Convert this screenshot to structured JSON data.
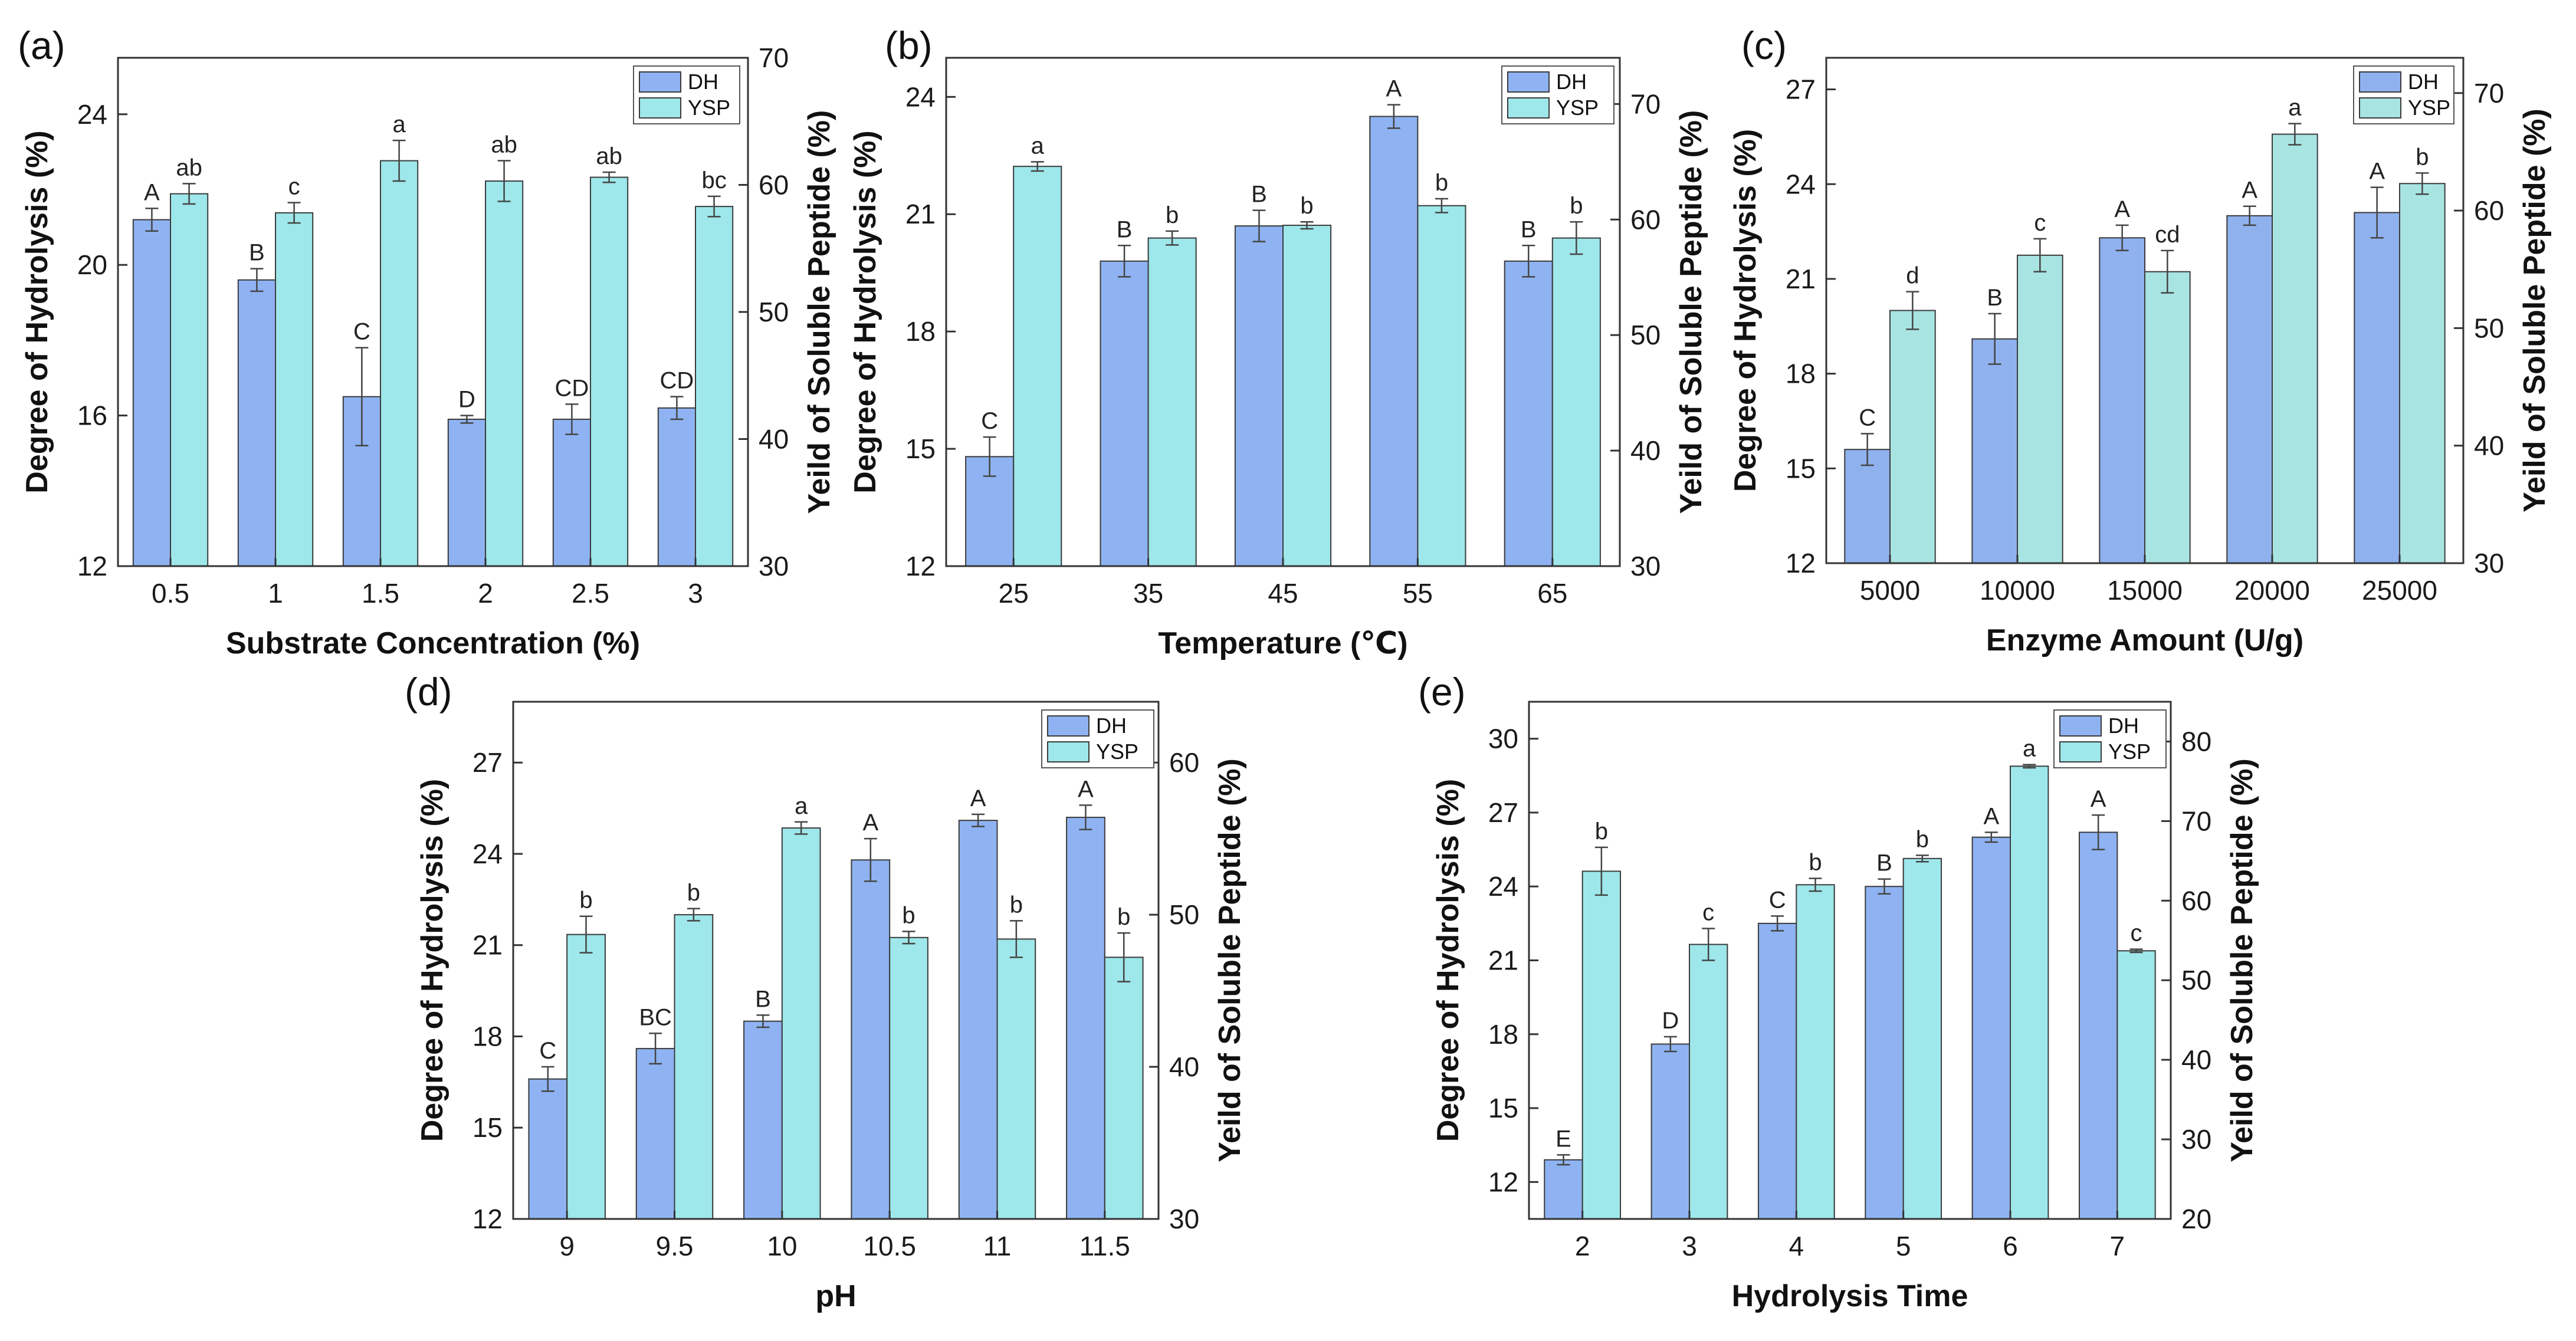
{
  "colors": {
    "dh": "#8fb3f2",
    "ysp": "#9ee7ea",
    "dh_c": "#8fb1ee",
    "ysp_c": "#a8e4e2",
    "axis": "#333333"
  },
  "chart_data": [
    {
      "panel": "(a)",
      "type": "bar",
      "categories": [
        "0.5",
        "1",
        "1.5",
        "2",
        "2.5",
        "3"
      ],
      "series": [
        {
          "name": "DH",
          "axis": "left",
          "values": [
            21.2,
            19.6,
            16.5,
            15.9,
            15.9,
            16.2
          ],
          "errors": [
            0.3,
            0.3,
            1.3,
            0.1,
            0.4,
            0.3
          ],
          "letters": [
            "A",
            "B",
            "C",
            "D",
            "CD",
            "CD"
          ]
        },
        {
          "name": "YSP",
          "axis": "right",
          "values": [
            59.3,
            57.8,
            61.9,
            60.3,
            60.6,
            58.3
          ],
          "errors": [
            0.8,
            0.8,
            1.6,
            1.6,
            0.4,
            0.8
          ],
          "letters": [
            "ab",
            "c",
            "a",
            "ab",
            "ab",
            "bc"
          ]
        }
      ],
      "xlabel": "Substrate Concentration (%)",
      "ylabel": "Degree of Hydrolysis (%)",
      "y2label": "Yeild of Soluble Peptide (%)",
      "ylim": [
        12,
        25.5
      ],
      "yticks": [
        "12",
        "16",
        "20",
        "24"
      ],
      "y2lim": [
        30,
        70
      ],
      "y2ticks": [
        "30",
        "40",
        "50",
        "60",
        "70"
      ],
      "legend": [
        "DH",
        "YSP"
      ]
    },
    {
      "panel": "(b)",
      "type": "bar",
      "categories": [
        "25",
        "35",
        "45",
        "55",
        "65"
      ],
      "series": [
        {
          "name": "DH",
          "axis": "left",
          "values": [
            14.8,
            19.8,
            20.7,
            23.5,
            19.8
          ],
          "errors": [
            0.5,
            0.4,
            0.4,
            0.3,
            0.4
          ],
          "letters": [
            "C",
            "B",
            "B",
            "A",
            "B"
          ]
        },
        {
          "name": "YSP",
          "axis": "right",
          "values": [
            64.6,
            58.4,
            59.5,
            61.2,
            58.4
          ],
          "errors": [
            0.4,
            0.6,
            0.3,
            0.6,
            1.4
          ],
          "letters": [
            "a",
            "b",
            "b",
            "b",
            "b"
          ]
        }
      ],
      "xlabel": "Temperature (℃)",
      "ylabel": "Degree of Hydrolysis (%)",
      "y2label": "Yeild of Soluble Peptide (%)",
      "ylim": [
        12,
        25
      ],
      "yticks": [
        "12",
        "15",
        "18",
        "21",
        "24"
      ],
      "y2lim": [
        30,
        74
      ],
      "y2ticks": [
        "30",
        "40",
        "50",
        "60",
        "70"
      ],
      "legend": [
        "DH",
        "YSP"
      ]
    },
    {
      "panel": "(c)",
      "type": "bar",
      "categories": [
        "5000",
        "10000",
        "15000",
        "20000",
        "25000"
      ],
      "series": [
        {
          "name": "DH",
          "axis": "left",
          "values": [
            15.6,
            19.1,
            22.3,
            23.0,
            23.1
          ],
          "errors": [
            0.5,
            0.8,
            0.4,
            0.3,
            0.8
          ],
          "letters": [
            "C",
            "B",
            "A",
            "A",
            "A"
          ]
        },
        {
          "name": "YSP",
          "axis": "right",
          "values": [
            51.5,
            56.2,
            54.8,
            66.5,
            62.3
          ],
          "errors": [
            1.6,
            1.4,
            1.8,
            0.9,
            0.9
          ],
          "letters": [
            "d",
            "c",
            "cd",
            "a",
            "b"
          ]
        }
      ],
      "xlabel": "Enzyme Amount (U/g)",
      "ylabel": "Degree of Hydrolysis (%)",
      "y2label": "Yeild of Soluble Peptide (%)",
      "ylim": [
        12,
        28
      ],
      "yticks": [
        "12",
        "15",
        "18",
        "21",
        "24",
        "27"
      ],
      "y2lim": [
        30,
        73
      ],
      "y2ticks": [
        "30",
        "40",
        "50",
        "60",
        "70"
      ],
      "legend": [
        "DH",
        "YSP"
      ]
    },
    {
      "panel": "(d)",
      "type": "bar",
      "categories": [
        "9",
        "9.5",
        "10",
        "10.5",
        "11",
        "11.5"
      ],
      "series": [
        {
          "name": "DH",
          "axis": "left",
          "values": [
            16.6,
            17.6,
            18.5,
            23.8,
            25.1,
            25.2
          ],
          "errors": [
            0.4,
            0.5,
            0.2,
            0.7,
            0.2,
            0.4
          ],
          "letters": [
            "C",
            "BC",
            "B",
            "A",
            "A",
            "A"
          ]
        },
        {
          "name": "YSP",
          "axis": "right",
          "values": [
            48.7,
            50.0,
            55.7,
            48.5,
            48.4,
            47.2
          ],
          "errors": [
            1.2,
            0.4,
            0.4,
            0.4,
            1.2,
            1.6
          ],
          "letters": [
            "b",
            "b",
            "a",
            "b",
            "b",
            "b"
          ]
        }
      ],
      "xlabel": "pH",
      "ylabel": "Degree of Hydrolysis (%)",
      "y2label": "Yeild of Soluble Peptide (%)",
      "ylim": [
        12,
        29
      ],
      "yticks": [
        "12",
        "15",
        "18",
        "21",
        "24",
        "27"
      ],
      "y2lim": [
        30,
        64
      ],
      "y2ticks": [
        "30",
        "40",
        "50",
        "60"
      ],
      "legend": [
        "DH",
        "YSP"
      ]
    },
    {
      "panel": "(e)",
      "type": "bar",
      "categories": [
        "2",
        "3",
        "4",
        "5",
        "6",
        "7"
      ],
      "series": [
        {
          "name": "DH",
          "axis": "left",
          "values": [
            12.9,
            17.6,
            22.5,
            24.0,
            26.0,
            26.2
          ],
          "errors": [
            0.2,
            0.3,
            0.3,
            0.3,
            0.2,
            0.7
          ],
          "letters": [
            "E",
            "D",
            "C",
            "B",
            "A",
            "A"
          ]
        },
        {
          "name": "YSP",
          "axis": "right",
          "values": [
            63.7,
            54.5,
            62.0,
            65.3,
            76.9,
            53.7
          ],
          "errors": [
            3.0,
            2.0,
            0.8,
            0.4,
            0.2,
            0.2
          ],
          "letters": [
            "b",
            "c",
            "b",
            "b",
            "a",
            "c"
          ]
        }
      ],
      "xlabel": "Hydrolysis Time",
      "ylabel": "Degree of Hydrolysis (%)",
      "y2label": "Yeild of Soluble Peptide (%)",
      "ylim": [
        10.5,
        31.5
      ],
      "yticks": [
        "12",
        "15",
        "18",
        "21",
        "24",
        "27",
        "30"
      ],
      "y2lim": [
        20,
        85
      ],
      "y2ticks": [
        "20",
        "30",
        "40",
        "50",
        "60",
        "70",
        "80"
      ],
      "legend": [
        "DH",
        "YSP"
      ]
    }
  ]
}
